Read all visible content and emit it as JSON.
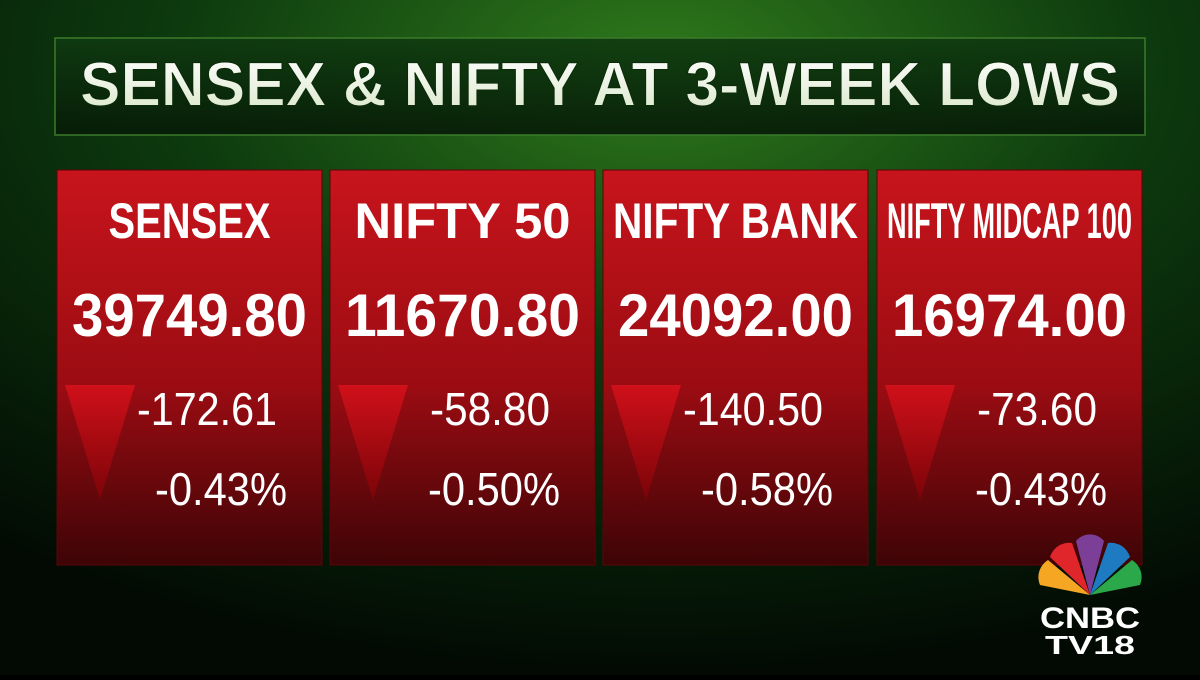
{
  "header": {
    "title": "SENSEX & NIFTY AT 3-WEEK LOWS"
  },
  "cards": [
    {
      "name": "SENSEX",
      "value": "39749.80",
      "change": "-172.61",
      "percent": "-0.43%"
    },
    {
      "name": "NIFTY 50",
      "value": "11670.80",
      "change": "-58.80",
      "percent": "-0.50%"
    },
    {
      "name": "NIFTY BANK",
      "value": "24092.00",
      "change": "-140.50",
      "percent": "-0.58%"
    },
    {
      "name": "NIFTY MIDCAP 100",
      "value": "16974.00",
      "change": "-73.60",
      "percent": "-0.43%"
    }
  ],
  "logo": {
    "brand": "CNBC",
    "channel": "TV18"
  }
}
